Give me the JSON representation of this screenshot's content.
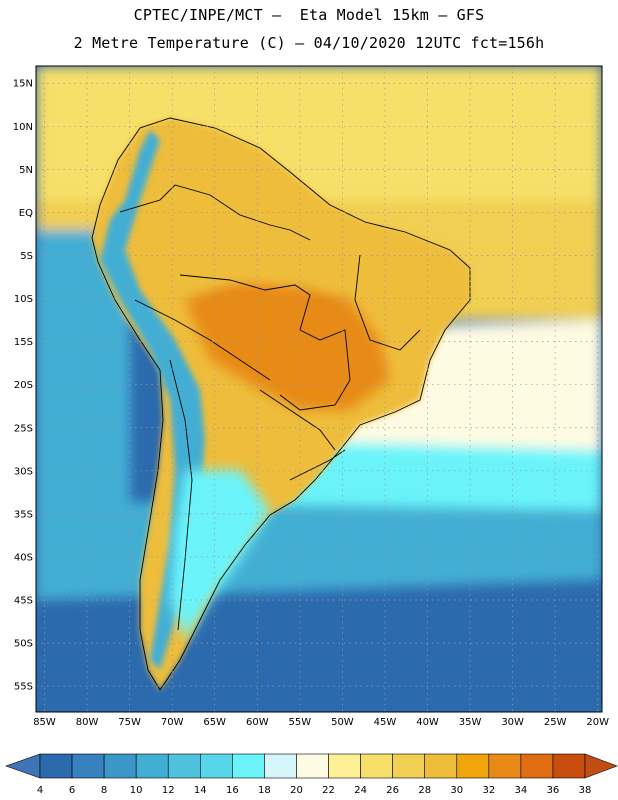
{
  "header": {
    "line1": "CPTEC/INPE/MCT –  Eta Model 15km – GFS",
    "line2": "2 Metre Temperature (C) – 04/10/2020 12UTC fct=156h"
  },
  "map": {
    "lon_range": [
      -86,
      -19.5
    ],
    "lat_range": [
      -58,
      17
    ],
    "lat_labels": [
      {
        "lat": 15,
        "text": "15N"
      },
      {
        "lat": 10,
        "text": "10N"
      },
      {
        "lat": 5,
        "text": "5N"
      },
      {
        "lat": 0,
        "text": "EQ"
      },
      {
        "lat": -5,
        "text": "5S"
      },
      {
        "lat": -10,
        "text": "10S"
      },
      {
        "lat": -15,
        "text": "15S"
      },
      {
        "lat": -20,
        "text": "20S"
      },
      {
        "lat": -25,
        "text": "25S"
      },
      {
        "lat": -30,
        "text": "30S"
      },
      {
        "lat": -35,
        "text": "35S"
      },
      {
        "lat": -40,
        "text": "40S"
      },
      {
        "lat": -45,
        "text": "45S"
      },
      {
        "lat": -50,
        "text": "50S"
      },
      {
        "lat": -55,
        "text": "55S"
      }
    ],
    "lon_labels": [
      {
        "lon": -85,
        "text": "85W"
      },
      {
        "lon": -80,
        "text": "80W"
      },
      {
        "lon": -75,
        "text": "75W"
      },
      {
        "lon": -70,
        "text": "70W"
      },
      {
        "lon": -65,
        "text": "65W"
      },
      {
        "lon": -60,
        "text": "60W"
      },
      {
        "lon": -55,
        "text": "55W"
      },
      {
        "lon": -50,
        "text": "50W"
      },
      {
        "lon": -45,
        "text": "45W"
      },
      {
        "lon": -40,
        "text": "40W"
      },
      {
        "lon": -35,
        "text": "35W"
      },
      {
        "lon": -30,
        "text": "30W"
      },
      {
        "lon": -25,
        "text": "25W"
      },
      {
        "lon": -20,
        "text": "20W"
      }
    ]
  },
  "colorbar": {
    "values": [
      "4",
      "6",
      "8",
      "10",
      "12",
      "14",
      "16",
      "18",
      "20",
      "22",
      "24",
      "26",
      "28",
      "30",
      "32",
      "34",
      "36",
      "38"
    ],
    "colors": [
      "#2c6aae",
      "#3681be",
      "#3c97c9",
      "#43aed4",
      "#4fc3de",
      "#58d6e9",
      "#6af4fa",
      "#d5f6fb",
      "#fefbe3",
      "#fdf097",
      "#f7e069",
      "#f1cf52",
      "#eebd3a",
      "#f0a60a",
      "#e88a17",
      "#e06d12",
      "#c94e0d"
    ],
    "low_color": "#3f75b6",
    "high_color": "#c14d12"
  },
  "colors": {
    "ocean_south": "#2c6aae",
    "ocean_mid": "#43aed4",
    "ocean_cold": "#6af4fa",
    "ocean_warm": "#fefbe3",
    "tropic_ocean": "#f7e069",
    "tropic_sea": "#f1cf52",
    "land_hot": "#e88a17",
    "land_warm": "#eebd3a",
    "border": "#000000",
    "grid": "#9a9a9a"
  }
}
